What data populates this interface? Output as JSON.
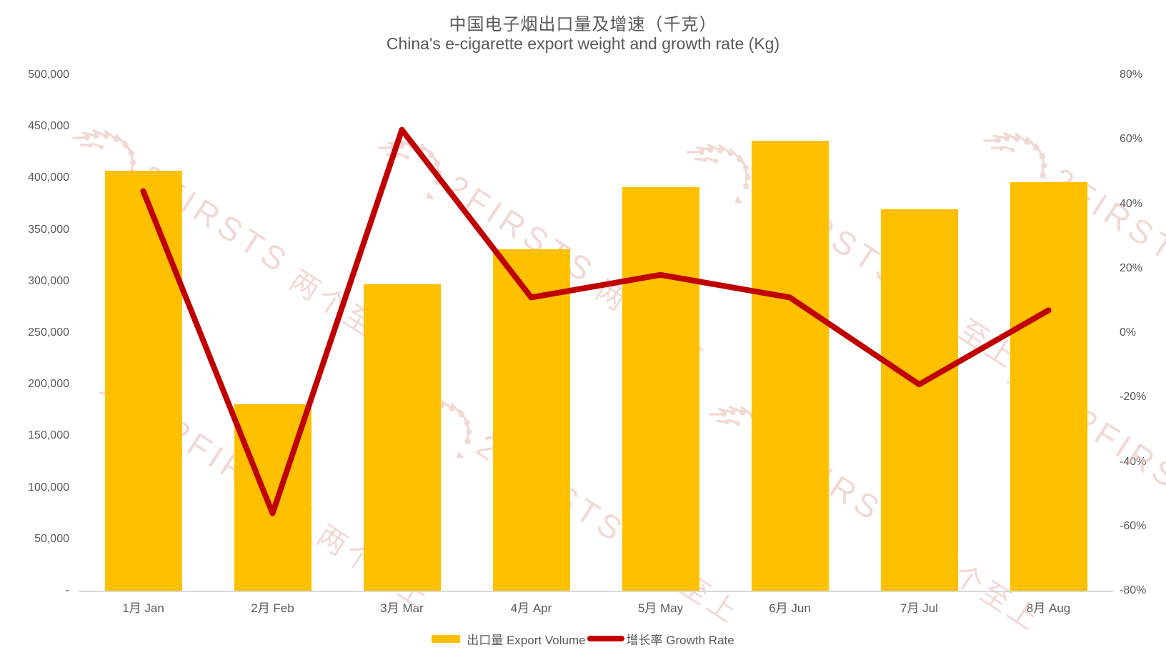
{
  "title": {
    "zh": "中国电子烟出口量及增速（千克）",
    "en": "China's e-cigarette export weight and growth rate (Kg)"
  },
  "watermark": {
    "brand": "2FIRSTS",
    "cn_text": "两个至上"
  },
  "legend": {
    "bar_label": "出口量 Export Volume",
    "line_label": "增长率 Growth Rate"
  },
  "colors": {
    "bar": "#FFC000",
    "line": "#C00000",
    "text": "#595959",
    "axis_line": "#D9D9D9",
    "watermark": "#E9C3BE"
  },
  "axes": {
    "left_ticks": [
      "500,000",
      "450,000",
      "400,000",
      "350,000",
      "300,000",
      "250,000",
      "200,000",
      "150,000",
      "100,000",
      "50,000",
      "-"
    ],
    "right_ticks": [
      "80%",
      "60%",
      "40%",
      "20%",
      "0%",
      "-20%",
      "-40%",
      "-60%",
      "-80%"
    ]
  },
  "chart_data": {
    "type": "bar+line",
    "title": "中国电子烟出口量及增速（千克）",
    "subtitle": "China's e-cigarette export weight and growth rate (Kg)",
    "categories": [
      "1月 Jan",
      "2月 Feb",
      "3月 Mar",
      "4月 Apr",
      "5月 May",
      "6月 Jun",
      "7月 Jul",
      "8月 Aug"
    ],
    "series": [
      {
        "name": "出口量 Export Volume",
        "type": "bar",
        "axis": "left",
        "unit": "kg",
        "values": [
          407000,
          181000,
          297000,
          331000,
          391000,
          436000,
          370000,
          396000
        ]
      },
      {
        "name": "增长率 Growth Rate",
        "type": "line",
        "axis": "right",
        "unit": "%",
        "values": [
          44,
          -56,
          63,
          11,
          18,
          11,
          -16,
          7
        ]
      }
    ],
    "left_axis": {
      "min": 0,
      "max": 500000,
      "step": 50000
    },
    "right_axis": {
      "min": -80,
      "max": 80,
      "step": 20,
      "unit": "%"
    },
    "grid": false,
    "legend_position": "bottom"
  }
}
